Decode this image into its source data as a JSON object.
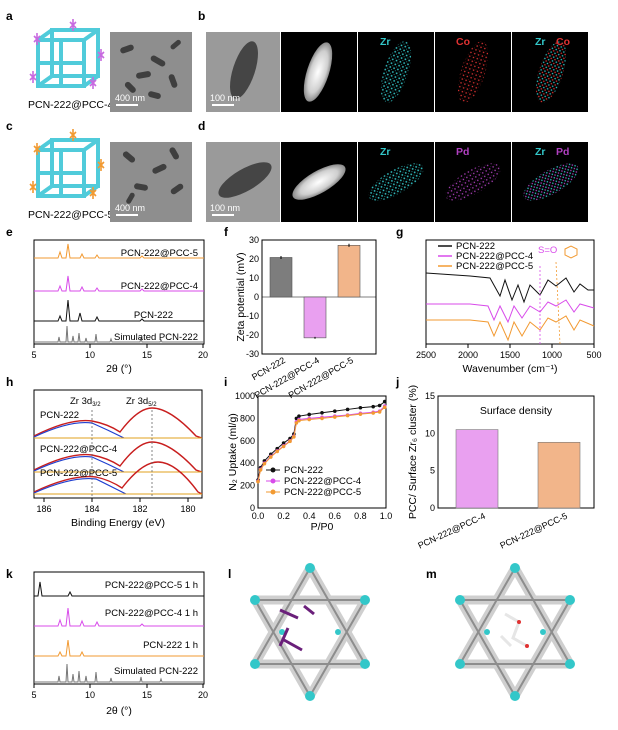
{
  "colors": {
    "black": "#111111",
    "magenta": "#d84bea",
    "orange": "#f29a32",
    "gray": "#777777",
    "cyan": "#33c7c9",
    "red": "#e03232",
    "purple": "#b040c0",
    "bar_gray": "#7d7d7d",
    "bar_pink": "#e9a0f0",
    "bar_orange": "#f2b58a",
    "xps_blue": "#1f3fd0",
    "xps_red": "#c81e1e",
    "xps_fit": "#e0a21e"
  },
  "panels": {
    "a": {
      "letter": "a",
      "caption": "PCN-222@PCC-4",
      "scale": "400 nm"
    },
    "b": {
      "letter": "b",
      "scale": "100 nm",
      "map_labels": [
        "Zr",
        "Co",
        "Zr",
        "Co"
      ]
    },
    "c": {
      "letter": "c",
      "caption": "PCN-222@PCC-5",
      "scale": "400 nm"
    },
    "d": {
      "letter": "d",
      "scale": "100 nm",
      "map_labels": [
        "Zr",
        "Pd",
        "Zr",
        "Pd"
      ]
    },
    "e": {
      "letter": "e",
      "xlabel": "2θ (°)",
      "xticks": [
        "5",
        "10",
        "15",
        "20"
      ],
      "traces": [
        "PCN-222@PCC-5",
        "PCN-222@PCC-4",
        "PCN-222",
        "Simulated PCN-222"
      ]
    },
    "f": {
      "letter": "f",
      "ylabel": "Zeta potential (mV)",
      "yticks": [
        "30",
        "20",
        "10",
        "0",
        "-10",
        "-20",
        "-30"
      ]
    },
    "g": {
      "letter": "g",
      "xlabel": "Wavenumber (cm⁻¹)",
      "xticks": [
        "2500",
        "2000",
        "1500",
        "1000",
        "500"
      ],
      "annot": "S=O",
      "legend": [
        "PCN-222",
        "PCN-222@PCC-4",
        "PCN-222@PCC-5"
      ]
    },
    "h": {
      "letter": "h",
      "xlabel": "Binding Energy (eV)",
      "xticks": [
        "186",
        "184",
        "182",
        "180"
      ],
      "peak1": "Zr 3d",
      "peak1_sub": "3/2",
      "peak2": "Zr 3d",
      "peak2_sub": "5/2",
      "traces": [
        "PCN-222",
        "PCN-222@PCC-4",
        "PCN-222@PCC-5"
      ]
    },
    "i": {
      "letter": "i",
      "xlabel": "P/P0",
      "ylabel": "N₂ Uptake (ml/g)",
      "xticks": [
        "0.0",
        "0.2",
        "0.4",
        "0.6",
        "0.8",
        "1.0"
      ],
      "yticks": [
        "0",
        "200",
        "400",
        "600",
        "800",
        "1000"
      ],
      "legend": [
        "PCN-222",
        "PCN-222@PCC-4",
        "PCN-222@PCC-5"
      ]
    },
    "j": {
      "letter": "j",
      "title": "Surface density",
      "ylabel": "PCC/ Surface Zr₆ cluster (%)",
      "yticks": [
        "0",
        "5",
        "10",
        "15"
      ]
    },
    "k": {
      "letter": "k",
      "xlabel": "2θ (°)",
      "xticks": [
        "5",
        "10",
        "15",
        "20"
      ],
      "traces": [
        "PCN-222@PCC-5  1 h",
        "PCN-222@PCC-4  1 h",
        "PCN-222  1 h",
        "Simulated PCN-222"
      ]
    },
    "l": {
      "letter": "l"
    },
    "m": {
      "letter": "m"
    }
  },
  "chart_data": [
    {
      "panel": "f",
      "type": "bar",
      "categories": [
        "PCN-222",
        "PCN-222@PCC-4",
        "PCN-222@PCC-5"
      ],
      "values": [
        20.8,
        -21.5,
        27.2
      ],
      "errors": [
        0.8,
        0.5,
        0.8
      ],
      "ylabel": "Zeta potential (mV)",
      "ylim": [
        -30,
        30
      ]
    },
    {
      "panel": "i",
      "type": "line",
      "xlabel": "P/P0",
      "ylabel": "N2 Uptake (ml/g)",
      "xlim": [
        0,
        1
      ],
      "ylim": [
        0,
        1000
      ],
      "x": [
        0.0,
        0.02,
        0.05,
        0.1,
        0.15,
        0.2,
        0.25,
        0.28,
        0.3,
        0.32,
        0.4,
        0.5,
        0.6,
        0.7,
        0.8,
        0.9,
        0.95,
        0.99
      ],
      "series": [
        {
          "name": "PCN-222",
          "values": [
            250,
            360,
            420,
            480,
            530,
            580,
            620,
            660,
            800,
            820,
            835,
            850,
            865,
            880,
            895,
            905,
            915,
            950
          ]
        },
        {
          "name": "PCN-222@PCC-4",
          "values": [
            240,
            345,
            400,
            460,
            510,
            555,
            600,
            640,
            770,
            790,
            800,
            810,
            820,
            830,
            845,
            855,
            865,
            910
          ]
        },
        {
          "name": "PCN-222@PCC-5",
          "values": [
            235,
            340,
            395,
            455,
            505,
            550,
            595,
            635,
            760,
            780,
            790,
            800,
            812,
            825,
            838,
            848,
            858,
            900
          ]
        }
      ]
    },
    {
      "panel": "j",
      "type": "bar",
      "categories": [
        "PCN-222@PCC-4",
        "PCN-222@PCC-5"
      ],
      "values": [
        10.5,
        8.8
      ],
      "title": "Surface density",
      "ylabel": "PCC/ Surface Zr6 cluster (%)",
      "ylim": [
        0,
        15
      ]
    }
  ]
}
